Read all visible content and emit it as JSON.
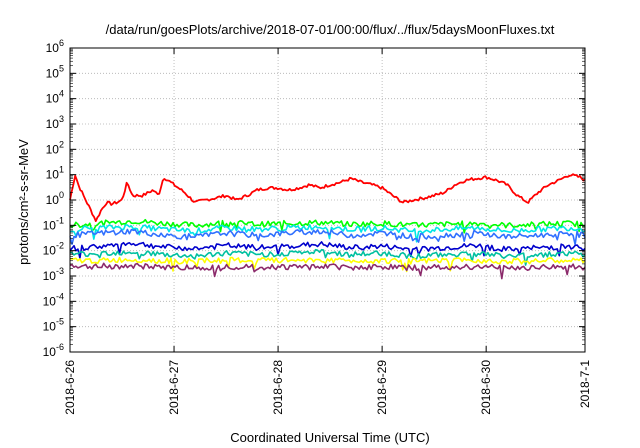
{
  "chart_data": {
    "type": "line",
    "title": "/data/run/goesPlots/archive/2018-07-01/00:00/flux/../flux/5daysMoonFluxes.txt",
    "xlabel": "Coordinated Universal Time (UTC)",
    "ylabel": "protons/cm²-s-sr-MeV",
    "y_scale": "log",
    "ylim": [
      1e-06,
      1000000.0
    ],
    "xlim": [
      0,
      4.95
    ],
    "x_tick_labels": [
      "2018-6-26",
      "2018-6-27",
      "2018-6-28",
      "2018-6-29",
      "2018-6-30",
      "2018-7-1"
    ],
    "x_tick_values": [
      0,
      1,
      2,
      3,
      4,
      4.95
    ],
    "y_tick_labels": [
      {
        "base": "10",
        "exp": "-6"
      },
      {
        "base": "10",
        "exp": "-5"
      },
      {
        "base": "10",
        "exp": "-4"
      },
      {
        "base": "10",
        "exp": "-3"
      },
      {
        "base": "10",
        "exp": "-2"
      },
      {
        "base": "10",
        "exp": "-1"
      },
      {
        "base": "10",
        "exp": "0"
      },
      {
        "base": "10",
        "exp": "1"
      },
      {
        "base": "10",
        "exp": "2"
      },
      {
        "base": "10",
        "exp": "3"
      },
      {
        "base": "10",
        "exp": "4"
      },
      {
        "base": "10",
        "exp": "5"
      },
      {
        "base": "10",
        "exp": "6"
      }
    ],
    "y_tick_values": [
      -6,
      -5,
      -4,
      -3,
      -2,
      -1,
      0,
      1,
      2,
      3,
      4,
      5,
      6
    ],
    "grid": true,
    "series": [
      {
        "color": "#ff0000",
        "x": [
          0,
          0.05,
          0.08,
          0.15,
          0.2,
          0.25,
          0.3,
          0.35,
          0.4,
          0.45,
          0.5,
          0.55,
          0.6,
          0.7,
          0.8,
          0.85,
          0.9,
          1.0,
          1.1,
          1.2,
          1.3,
          1.4,
          1.5,
          1.6,
          1.7,
          1.8,
          1.9,
          2.0,
          2.1,
          2.2,
          2.3,
          2.4,
          2.5,
          2.6,
          2.7,
          2.8,
          2.9,
          3.0,
          3.1,
          3.2,
          3.3,
          3.4,
          3.5,
          3.6,
          3.7,
          3.8,
          3.9,
          4.0,
          4.1,
          4.2,
          4.3,
          4.4,
          4.5,
          4.6,
          4.7,
          4.8,
          4.9,
          4.95
        ],
        "y": [
          1.0,
          10,
          4,
          1.0,
          0.4,
          0.15,
          0.4,
          0.8,
          0.7,
          0.8,
          1.0,
          5,
          1.5,
          1.5,
          2.5,
          1.5,
          8,
          4,
          2,
          0.8,
          1.0,
          1.2,
          1.5,
          1.0,
          1.5,
          2.5,
          3,
          3,
          2.5,
          3,
          4,
          3,
          4,
          5,
          7,
          5,
          4,
          3,
          1.5,
          0.8,
          1.0,
          1.2,
          1.5,
          2,
          4,
          6,
          7,
          8,
          6,
          4,
          1.5,
          0.8,
          2,
          4,
          6,
          10,
          8,
          6
        ]
      },
      {
        "color": "#00ff00",
        "x": [
          0,
          0.3,
          0.6,
          0.9,
          1.2,
          1.5,
          1.8,
          2.1,
          2.4,
          2.7,
          3.0,
          3.3,
          3.6,
          3.9,
          4.2,
          4.5,
          4.8,
          4.95
        ],
        "y": [
          0.1,
          0.12,
          0.15,
          0.12,
          0.1,
          0.13,
          0.11,
          0.12,
          0.13,
          0.11,
          0.12,
          0.1,
          0.11,
          0.12,
          0.1,
          0.11,
          0.12,
          0.11
        ]
      },
      {
        "color": "#00e5e5",
        "x": [
          0,
          0.3,
          0.6,
          0.9,
          1.2,
          1.5,
          1.8,
          2.1,
          2.4,
          2.7,
          3.0,
          3.3,
          3.6,
          3.9,
          4.2,
          4.5,
          4.8,
          4.95
        ],
        "y": [
          0.07,
          0.08,
          0.09,
          0.07,
          0.06,
          0.08,
          0.07,
          0.08,
          0.09,
          0.07,
          0.08,
          0.06,
          0.07,
          0.08,
          0.06,
          0.07,
          0.08,
          0.07
        ]
      },
      {
        "color": "#3070ff",
        "x": [
          0,
          0.3,
          0.6,
          0.9,
          1.2,
          1.5,
          1.8,
          2.1,
          2.4,
          2.7,
          3.0,
          3.3,
          3.6,
          3.9,
          4.2,
          4.5,
          4.8,
          4.95
        ],
        "y": [
          0.04,
          0.05,
          0.06,
          0.04,
          0.035,
          0.05,
          0.04,
          0.05,
          0.06,
          0.04,
          0.05,
          0.035,
          0.04,
          0.05,
          0.035,
          0.04,
          0.05,
          0.04
        ]
      },
      {
        "color": "#0000cc",
        "x": [
          0,
          0.3,
          0.6,
          0.9,
          1.2,
          1.5,
          1.8,
          2.1,
          2.4,
          2.7,
          3.0,
          3.3,
          3.6,
          3.9,
          4.2,
          4.5,
          4.8,
          4.95
        ],
        "y": [
          0.012,
          0.015,
          0.02,
          0.014,
          0.012,
          0.016,
          0.013,
          0.015,
          0.018,
          0.013,
          0.015,
          0.011,
          0.013,
          0.016,
          0.011,
          0.013,
          0.015,
          0.013
        ]
      },
      {
        "color": "#00c0a0",
        "x": [
          0,
          0.3,
          0.6,
          0.9,
          1.2,
          1.5,
          1.8,
          2.1,
          2.4,
          2.7,
          3.0,
          3.3,
          3.6,
          3.9,
          4.2,
          4.5,
          4.8,
          4.95
        ],
        "y": [
          0.007,
          0.008,
          0.009,
          0.007,
          0.006,
          0.008,
          0.007,
          0.008,
          0.009,
          0.007,
          0.008,
          0.006,
          0.007,
          0.008,
          0.006,
          0.007,
          0.008,
          0.007
        ]
      },
      {
        "color": "#ffff00",
        "x": [
          0,
          0.3,
          0.6,
          0.9,
          1.2,
          1.5,
          1.8,
          2.1,
          2.4,
          2.7,
          3.0,
          3.3,
          3.6,
          3.9,
          4.2,
          4.5,
          4.8,
          4.95
        ],
        "y": [
          0.004,
          0.004,
          0.0045,
          0.004,
          0.0038,
          0.0042,
          0.004,
          0.0042,
          0.0043,
          0.004,
          0.0041,
          0.0038,
          0.004,
          0.0042,
          0.0038,
          0.004,
          0.0041,
          0.004
        ]
      },
      {
        "color": "#8b2a6b",
        "x": [
          0,
          0.3,
          0.6,
          0.9,
          1.2,
          1.5,
          1.8,
          2.1,
          2.4,
          2.7,
          3.0,
          3.3,
          3.6,
          3.9,
          4.2,
          4.5,
          4.8,
          4.95
        ],
        "y": [
          0.0022,
          0.0025,
          0.0024,
          0.0023,
          0.0021,
          0.0024,
          0.0022,
          0.0023,
          0.0025,
          0.0022,
          0.0023,
          0.0021,
          0.0022,
          0.0024,
          0.0021,
          0.0022,
          0.0023,
          0.0022
        ]
      }
    ]
  }
}
